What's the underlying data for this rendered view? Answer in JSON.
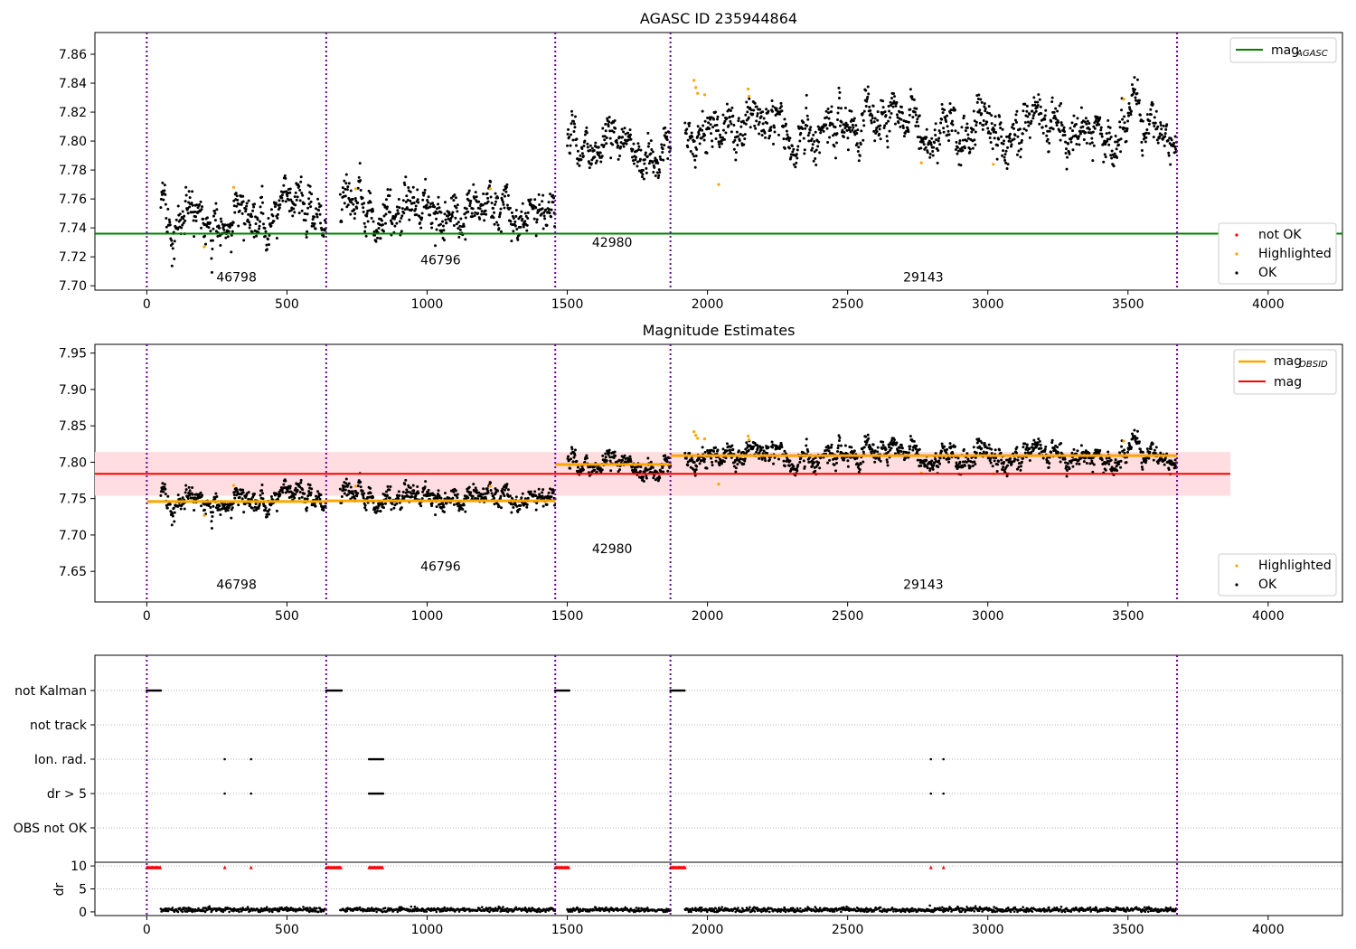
{
  "chart_data": [
    {
      "type": "scatter",
      "title": "AGASC ID 235944864",
      "xlim": [
        -185,
        4265
      ],
      "ylim": [
        7.697,
        7.875
      ],
      "yticks": [
        "7.70",
        "7.72",
        "7.74",
        "7.76",
        "7.78",
        "7.80",
        "7.82",
        "7.84",
        "7.86"
      ],
      "ytick_values": [
        7.7,
        7.72,
        7.74,
        7.76,
        7.78,
        7.8,
        7.82,
        7.84,
        7.86
      ],
      "xticks": [
        "0",
        "500",
        "1000",
        "1500",
        "2000",
        "2500",
        "3000",
        "3500",
        "4000"
      ],
      "xtick_values": [
        0,
        500,
        1000,
        1500,
        2000,
        2500,
        3000,
        3500,
        4000
      ],
      "mag_agasc": 7.736,
      "obs_boundaries": [
        0,
        640,
        1457,
        1868,
        3675
      ],
      "obs_labels": [
        {
          "text": "46798",
          "x": 320,
          "y": 7.706
        },
        {
          "text": "46796",
          "x": 1048,
          "y": 7.718
        },
        {
          "text": "42980",
          "x": 1660,
          "y": 7.73
        },
        {
          "text": "29143",
          "x": 2770,
          "y": 7.706
        }
      ],
      "series_segments": [
        {
          "start": 50,
          "end": 640,
          "mean": 7.748,
          "spread": 0.009
        },
        {
          "start": 690,
          "end": 1457,
          "mean": 7.749,
          "spread": 0.008
        },
        {
          "start": 1500,
          "end": 1868,
          "mean": 7.798,
          "spread": 0.008
        },
        {
          "start": 1920,
          "end": 3675,
          "mean": 7.808,
          "spread": 0.008
        }
      ],
      "highlighted_points": [
        [
          205,
          7.727
        ],
        [
          310,
          7.768
        ],
        [
          745,
          7.767
        ],
        [
          1225,
          7.767
        ],
        [
          1952,
          7.842
        ],
        [
          1958,
          7.837
        ],
        [
          1965,
          7.833
        ],
        [
          1990,
          7.832
        ],
        [
          2040,
          7.77
        ],
        [
          2145,
          7.836
        ],
        [
          2148,
          7.831
        ],
        [
          2763,
          7.785
        ],
        [
          3020,
          7.784
        ],
        [
          3485,
          7.829
        ]
      ],
      "legend_top": {
        "placement": "top-right",
        "entries": [
          "mag",
          "AGASC"
        ]
      },
      "legend_bottom": {
        "placement": "bottom-right",
        "entries": [
          "not OK",
          "Highlighted",
          "OK"
        ]
      },
      "colors": {
        "ok": "#000000",
        "highlighted": "#ffa500",
        "not_ok": "#ff0000",
        "agasc_line": "#008000",
        "boundary": "#7000a0"
      }
    },
    {
      "type": "scatter",
      "title": "Magnitude Estimates",
      "xlim": [
        -185,
        4265
      ],
      "ylim": [
        7.608,
        7.962
      ],
      "yticks": [
        "7.65",
        "7.70",
        "7.75",
        "7.80",
        "7.85",
        "7.90",
        "7.95"
      ],
      "ytick_values": [
        7.65,
        7.7,
        7.75,
        7.8,
        7.85,
        7.9,
        7.95
      ],
      "xticks": [
        "0",
        "500",
        "1000",
        "1500",
        "2000",
        "2500",
        "3000",
        "3500",
        "4000"
      ],
      "xtick_values": [
        0,
        500,
        1000,
        1500,
        2000,
        2500,
        3000,
        3500,
        4000
      ],
      "mag_mean": 7.784,
      "mag_band": [
        7.754,
        7.814
      ],
      "mag_band_x": [
        -185,
        3865
      ],
      "obsid_mags": [
        {
          "start": 0,
          "end": 640,
          "mag": 7.746
        },
        {
          "start": 640,
          "end": 1457,
          "mag": 7.747
        },
        {
          "start": 1457,
          "end": 1868,
          "mag": 7.797
        },
        {
          "start": 1868,
          "end": 3675,
          "mag": 7.809
        }
      ],
      "obs_labels": [
        {
          "text": "46798",
          "x": 320,
          "y": 7.632
        },
        {
          "text": "46796",
          "x": 1048,
          "y": 7.657
        },
        {
          "text": "42980",
          "x": 1660,
          "y": 7.681
        },
        {
          "text": "29143",
          "x": 2770,
          "y": 7.632
        }
      ],
      "legend_top": {
        "placement": "top-right",
        "entries": [
          {
            "main": "mag",
            "sub": "OBSID"
          },
          {
            "main": "mag",
            "sub": ""
          }
        ]
      },
      "legend_bottom": {
        "placement": "bottom-right",
        "entries": [
          "Highlighted",
          "OK"
        ]
      },
      "colors": {
        "obsid_line": "#ffa500",
        "mag_line": "#ff0000",
        "band": "#ffdde0"
      }
    },
    {
      "type": "scatter",
      "title": "",
      "flag_rows": [
        "not Kalman",
        "not track",
        "Ion. rad.",
        "dr > 5",
        "OBS not OK"
      ],
      "flag_points": {
        "not Kalman": [
          [
            0,
            50
          ],
          [
            640,
            695
          ],
          [
            1457,
            1508
          ],
          [
            1868,
            1922
          ]
        ],
        "not track": [],
        "Ion. rad.": [
          [
            278,
            278
          ],
          [
            372,
            372
          ],
          [
            793,
            843
          ],
          [
            2797,
            2797
          ],
          [
            2842,
            2842
          ]
        ],
        "dr > 5": [
          [
            278,
            278
          ],
          [
            372,
            372
          ],
          [
            793,
            843
          ],
          [
            2797,
            2797
          ],
          [
            2842,
            2842
          ]
        ],
        "OBS not OK": []
      },
      "dr": {
        "ylabel": "dr",
        "yticks": [
          "0",
          "5",
          "10"
        ],
        "ytick_values": [
          0,
          5,
          10
        ],
        "ylim": [
          -0.8,
          10.8
        ],
        "high_value": 9.7,
        "high_ranges": [
          [
            0,
            50
          ],
          [
            640,
            695
          ],
          [
            1457,
            1508
          ],
          [
            1868,
            1922
          ],
          [
            793,
            843
          ]
        ],
        "high_single": [
          278,
          372,
          2797,
          2842
        ],
        "low_ranges": [
          [
            50,
            640
          ],
          [
            690,
            1457
          ],
          [
            1500,
            1868
          ],
          [
            1920,
            3675
          ]
        ],
        "low_mean": 0.45
      }
    }
  ]
}
